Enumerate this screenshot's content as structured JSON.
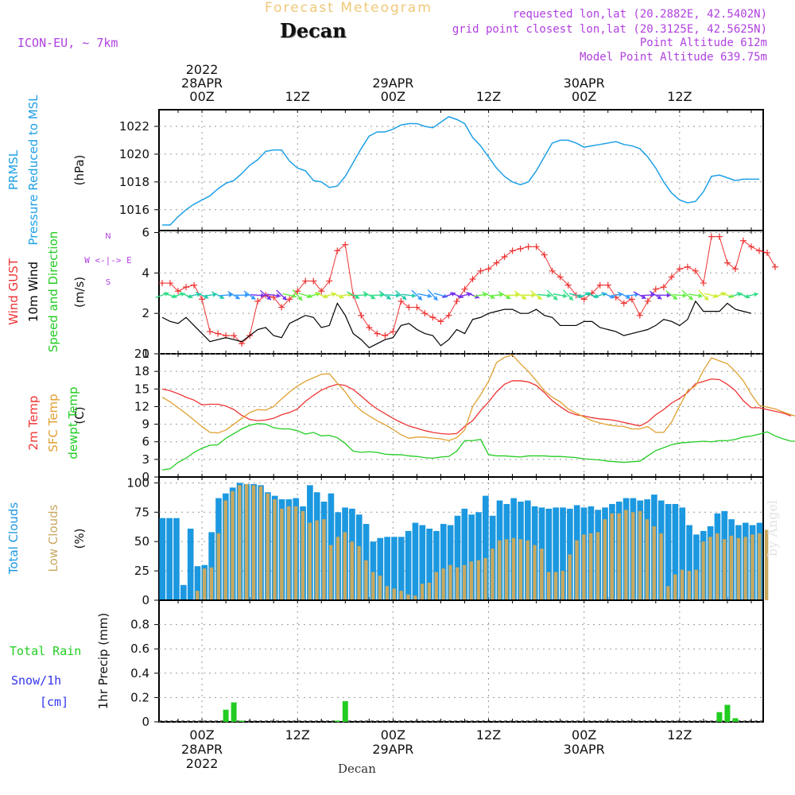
{
  "header": {
    "title": "Forecast Meteogram",
    "location": "Decan",
    "model": "ICON-EU, ~ 7km",
    "requested": "requested lon,lat (20.2882E, 42.5402N)",
    "gridpoint": "grid point closest lon,lat (20.3125E, 42.5625N)",
    "point_alt": "Point Altitude 612m",
    "model_alt": "Model Point Altitude 639.75m",
    "watermark": "by Angel",
    "footer": "Decan"
  },
  "colors": {
    "pressure": "#1ea0e6",
    "gust": "#ee3333",
    "wind": "#000000",
    "temp": "#ee3333",
    "sfc": "#e0a030",
    "dew": "#22cc22",
    "total_clouds": "#1b98e0",
    "low_clouds": "#c8a860",
    "rain": "#22cc22",
    "snow": "#3333ee",
    "purple": "#b040e0"
  },
  "time_axis": {
    "top_labels": [
      {
        "t": 0,
        "lines": [
          "2022",
          "28APR",
          "00Z"
        ]
      },
      {
        "t": 12,
        "lines": [
          "12Z"
        ]
      },
      {
        "t": 24,
        "lines": [
          "29APR",
          "00Z"
        ]
      },
      {
        "t": 36,
        "lines": [
          "12Z"
        ]
      },
      {
        "t": 48,
        "lines": [
          "30APR",
          "00Z"
        ]
      },
      {
        "t": 60,
        "lines": [
          "12Z"
        ]
      }
    ],
    "bottom_labels": [
      {
        "t": 0,
        "lines": [
          "00Z",
          "28APR",
          "2022"
        ]
      },
      {
        "t": 12,
        "lines": [
          "12Z"
        ]
      },
      {
        "t": 24,
        "lines": [
          "00Z",
          "29APR"
        ]
      },
      {
        "t": 36,
        "lines": [
          "12Z"
        ]
      },
      {
        "t": 48,
        "lines": [
          "00Z",
          "30APR"
        ]
      },
      {
        "t": 60,
        "lines": [
          "12Z"
        ]
      }
    ]
  },
  "chart_data": [
    {
      "type": "line",
      "panel": "pressure",
      "side_labels": [
        "PRMSL",
        "Pressure Reduced to MSL"
      ],
      "unit": "(hPa)",
      "ylim": [
        1014.5,
        1023.2
      ],
      "yticks": [
        1016,
        1018,
        1020,
        1022
      ],
      "x_hours": [
        -5,
        -4,
        -3,
        -2,
        -1,
        0,
        1,
        2,
        3,
        4,
        5,
        6,
        7,
        8,
        9,
        10,
        11,
        12,
        13,
        14,
        15,
        16,
        17,
        18,
        19,
        20,
        21,
        22,
        23,
        24,
        25,
        26,
        27,
        28,
        29,
        30,
        31,
        32,
        33,
        34,
        35,
        36,
        37,
        38,
        39,
        40,
        41,
        42,
        43,
        44,
        45,
        46,
        47,
        48,
        49,
        50,
        51,
        52,
        53,
        54,
        55,
        56,
        57,
        58,
        59,
        60,
        61,
        62,
        63,
        64,
        65,
        66,
        67,
        68,
        69,
        70
      ],
      "series": [
        {
          "values": [
            1014.9,
            1014.9,
            1015.5,
            1016.0,
            1016.4,
            1016.7,
            1017.0,
            1017.5,
            1017.9,
            1018.1,
            1018.6,
            1019.2,
            1019.6,
            1020.2,
            1020.3,
            1020.3,
            1019.5,
            1019.0,
            1018.8,
            1018.1,
            1018.0,
            1017.6,
            1017.7,
            1018.4,
            1019.4,
            1020.4,
            1021.3,
            1021.6,
            1021.6,
            1021.8,
            1022.1,
            1022.2,
            1022.2,
            1022.0,
            1021.9,
            1022.3,
            1022.7,
            1022.5,
            1022.2,
            1021.2,
            1020.6,
            1019.8,
            1019.0,
            1018.4,
            1018.0,
            1017.8,
            1018.0,
            1018.8,
            1019.8,
            1020.8,
            1021.0,
            1021.0,
            1020.8,
            1020.5,
            1020.6,
            1020.7,
            1020.8,
            1020.9,
            1020.7,
            1020.6,
            1020.4,
            1019.8,
            1019.0,
            1018.0,
            1017.2,
            1016.7,
            1016.5,
            1016.6,
            1017.3,
            1018.4,
            1018.5,
            1018.3,
            1018.1,
            1018.2,
            1018.2,
            1018.2
          ]
        }
      ]
    },
    {
      "type": "line",
      "panel": "wind",
      "side_labels": [
        "Wind GUST",
        "10m Wind",
        "Speed and Direction"
      ],
      "unit": "(m/s)",
      "compass": [
        "N",
        "W <-|-> E",
        "S"
      ],
      "ylim": [
        0,
        6.1
      ],
      "yticks": [
        0,
        2,
        4,
        6
      ],
      "series": [
        {
          "name": "Wind GUST",
          "values": [
            3.5,
            3.5,
            3.1,
            3.3,
            3.4,
            2.7,
            1.1,
            1.0,
            0.9,
            0.9,
            0.5,
            0.9,
            2.6,
            2.9,
            2.8,
            2.3,
            2.7,
            3.1,
            3.6,
            3.6,
            3.1,
            3.6,
            5.1,
            5.4,
            2.9,
            1.9,
            1.3,
            1.0,
            0.9,
            1.1,
            2.6,
            2.3,
            2.3,
            2.0,
            1.8,
            1.6,
            1.9,
            2.6,
            3.2,
            3.7,
            4.1,
            4.2,
            4.5,
            4.8,
            5.1,
            5.2,
            5.3,
            5.3,
            4.9,
            4.1,
            3.8,
            3.4,
            2.9,
            2.7,
            3.0,
            3.4,
            3.4,
            2.8,
            2.5,
            2.7,
            1.9,
            2.6,
            3.2,
            3.3,
            3.8,
            4.2,
            4.3,
            4.1,
            3.5,
            5.8,
            5.8,
            4.5,
            4.2,
            5.6,
            5.3,
            5.1,
            5.0,
            4.3
          ]
        },
        {
          "name": "10m Wind",
          "values": [
            1.8,
            1.6,
            1.5,
            1.8,
            1.4,
            1.0,
            0.6,
            0.7,
            0.8,
            0.7,
            0.6,
            0.9,
            1.2,
            1.3,
            0.9,
            0.8,
            1.5,
            1.7,
            1.9,
            1.8,
            1.3,
            1.4,
            2.5,
            1.9,
            1.0,
            0.7,
            0.3,
            0.5,
            0.7,
            0.8,
            1.4,
            1.5,
            1.2,
            1.0,
            0.9,
            0.4,
            0.7,
            1.2,
            1.0,
            1.7,
            1.8,
            2.0,
            2.1,
            2.2,
            2.2,
            2.0,
            2.0,
            2.2,
            1.9,
            1.8,
            1.4,
            1.4,
            1.4,
            1.6,
            1.6,
            1.3,
            1.2,
            1.1,
            0.9,
            1.0,
            1.1,
            1.2,
            1.4,
            1.7,
            1.6,
            1.4,
            1.7,
            2.6,
            2.1,
            2.1,
            2.1,
            2.5,
            2.2,
            2.1,
            2.0
          ]
        }
      ],
      "direction_hues": [
        "#33dd88",
        "#22c8aa",
        "#3399ff",
        "#7733ee",
        "#66ee44",
        "#ccee33"
      ]
    },
    {
      "type": "line",
      "panel": "temperature",
      "side_labels": [
        "2m Temp",
        "SFC Temp",
        "dewpt Temp"
      ],
      "unit": "(C)",
      "ylim": [
        0,
        21
      ],
      "yticks": [
        0,
        3,
        6,
        9,
        12,
        15,
        18,
        21
      ],
      "series": [
        {
          "name": "2m Temp",
          "values": [
            15.0,
            14.7,
            14.2,
            13.6,
            13.1,
            12.3,
            12.4,
            12.4,
            12.1,
            11.5,
            10.5,
            9.8,
            9.6,
            9.7,
            10.0,
            10.6,
            11.0,
            11.6,
            12.9,
            13.9,
            14.8,
            15.4,
            15.8,
            15.6,
            14.9,
            13.8,
            12.6,
            11.6,
            10.8,
            10.0,
            9.3,
            8.7,
            8.3,
            7.9,
            7.6,
            7.4,
            7.3,
            7.4,
            8.6,
            9.6,
            11.3,
            12.8,
            14.5,
            15.8,
            16.4,
            16.4,
            16.2,
            15.6,
            14.4,
            13.0,
            12.0,
            11.1,
            10.6,
            10.4,
            10.1,
            9.9,
            9.8,
            9.6,
            9.3,
            9.0,
            8.7,
            9.4,
            10.6,
            11.5,
            12.6,
            13.4,
            14.4,
            15.9,
            16.3,
            16.7,
            16.6,
            15.8,
            14.7,
            13.0,
            11.8,
            11.8,
            11.5,
            11.2,
            10.9,
            10.4
          ]
        },
        {
          "name": "SFC Temp",
          "values": [
            13.6,
            12.8,
            11.8,
            10.8,
            9.7,
            8.6,
            7.6,
            7.5,
            8.0,
            9.0,
            10.0,
            11.0,
            11.5,
            11.4,
            12.0,
            13.3,
            14.5,
            15.5,
            16.3,
            16.9,
            17.5,
            17.6,
            16.0,
            14.5,
            12.6,
            11.3,
            10.4,
            9.6,
            8.9,
            8.1,
            7.2,
            6.6,
            6.8,
            6.8,
            6.6,
            6.5,
            6.2,
            6.7,
            8.0,
            12.0,
            14.0,
            16.3,
            19.5,
            20.4,
            20.8,
            19.3,
            18.0,
            16.4,
            14.7,
            13.6,
            12.8,
            11.6,
            10.9,
            10.2,
            9.6,
            9.2,
            8.9,
            8.7,
            8.6,
            8.2,
            8.2,
            8.6,
            7.6,
            7.6,
            9.4,
            12.1,
            14.7,
            15.5,
            18.2,
            20.3,
            19.8,
            19.3,
            18.0,
            16.4,
            14.1,
            12.2,
            11.9,
            11.6,
            11.1,
            10.6,
            10.2
          ]
        },
        {
          "name": "dewpt Temp",
          "values": [
            1.2,
            1.4,
            2.5,
            3.2,
            4.2,
            4.9,
            5.4,
            5.5,
            6.6,
            7.4,
            8.2,
            8.8,
            9.1,
            9.0,
            8.4,
            8.2,
            8.2,
            7.9,
            7.3,
            7.6,
            7.0,
            7.1,
            6.7,
            5.7,
            4.4,
            4.2,
            4.3,
            4.2,
            3.9,
            3.8,
            3.8,
            3.6,
            3.5,
            3.3,
            3.2,
            3.4,
            3.5,
            4.4,
            6.2,
            6.2,
            6.4,
            3.8,
            3.6,
            3.6,
            3.5,
            3.4,
            3.6,
            3.6,
            3.6,
            3.5,
            3.5,
            3.4,
            3.3,
            3.1,
            3.0,
            2.9,
            2.7,
            2.6,
            2.5,
            2.6,
            2.7,
            3.6,
            4.5,
            5.0,
            5.5,
            5.8,
            5.9,
            6.0,
            6.1,
            6.0,
            6.2,
            6.2,
            6.4,
            6.8,
            7.0,
            7.3,
            7.7,
            7.0,
            6.5,
            6.1,
            6.1
          ]
        }
      ]
    },
    {
      "type": "bar",
      "panel": "clouds",
      "side_labels": [
        "Total Clouds",
        "Low Clouds"
      ],
      "unit": "(%)",
      "ylim": [
        0,
        105
      ],
      "yticks": [
        0,
        25,
        50,
        75,
        100
      ],
      "series": [
        {
          "name": "Total Clouds",
          "values": [
            70,
            70,
            70,
            13,
            61,
            29,
            30,
            58,
            87,
            91,
            96,
            100,
            99,
            99,
            98,
            92,
            89,
            86,
            86,
            87,
            80,
            98,
            92,
            84,
            91,
            75,
            79,
            78,
            73,
            65,
            50,
            53,
            54,
            54,
            54,
            59,
            66,
            64,
            61,
            59,
            65,
            64,
            72,
            78,
            73,
            75,
            89,
            72,
            85,
            82,
            87,
            84,
            85,
            80,
            79,
            78,
            79,
            79,
            78,
            81,
            79,
            80,
            77,
            79,
            82,
            84,
            87,
            87,
            85,
            86,
            90,
            85,
            82,
            82,
            79,
            64,
            56,
            59,
            63,
            74,
            76,
            69,
            64,
            66,
            64,
            66
          ]
        },
        {
          "name": "Low Clouds",
          "values": [
            0,
            0,
            0,
            0,
            0,
            8,
            27,
            28,
            57,
            85,
            93,
            98,
            99,
            98,
            97,
            91,
            86,
            78,
            80,
            80,
            76,
            66,
            68,
            69,
            47,
            54,
            58,
            50,
            46,
            34,
            24,
            21,
            12,
            10,
            8,
            5,
            4,
            14,
            15,
            24,
            27,
            30,
            28,
            30,
            33,
            34,
            36,
            44,
            51,
            52,
            53,
            52,
            51,
            47,
            44,
            24,
            24,
            25,
            39,
            51,
            56,
            57,
            58,
            69,
            74,
            74,
            77,
            75,
            76,
            69,
            63,
            57,
            12,
            22,
            26,
            25,
            26,
            50,
            54,
            57,
            52,
            55,
            53,
            54,
            56,
            57,
            60
          ]
        }
      ]
    },
    {
      "type": "bar",
      "panel": "precip",
      "side_labels": [
        "Total  Rain",
        "Snow/1h",
        "[cm]"
      ],
      "unit": "1hr Precip (mm)",
      "ylim": [
        0,
        1.0
      ],
      "yticks": [
        0,
        0.2,
        0.4,
        0.6,
        0.8
      ],
      "series": [
        {
          "name": "Total Rain",
          "points": [
            [
              3,
              0.1
            ],
            [
              4,
              0.16
            ],
            [
              5,
              0.01
            ],
            [
              17,
              0.01
            ],
            [
              18,
              0.17
            ],
            [
              65,
              0.08
            ],
            [
              66,
              0.14
            ],
            [
              67,
              0.03
            ]
          ]
        },
        {
          "name": "Snow/1h",
          "points": []
        }
      ]
    }
  ]
}
